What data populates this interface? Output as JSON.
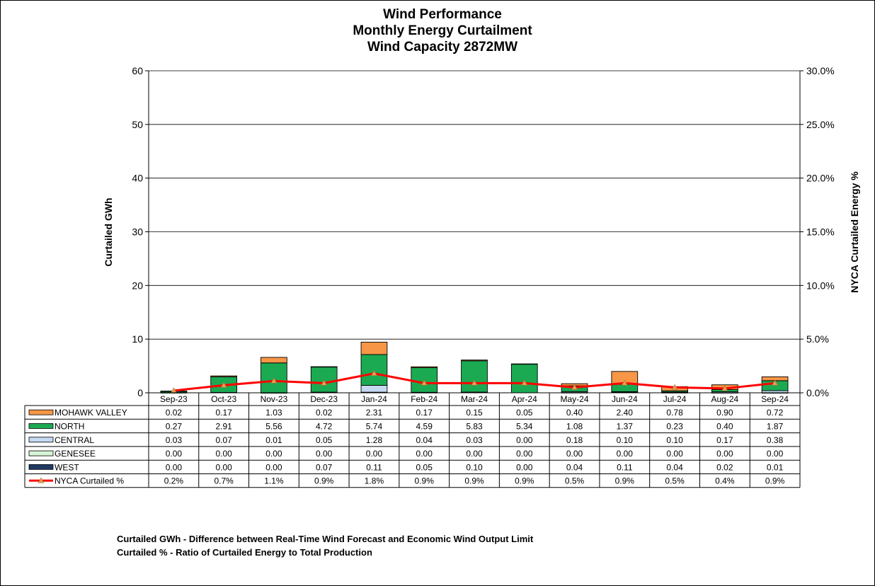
{
  "chart_data": {
    "type": "bar",
    "stacked": true,
    "title_lines": [
      "Wind Performance",
      "Monthly Energy Curtailment",
      "Wind Capacity 2872MW"
    ],
    "ylabel": "Curtailed GWh",
    "y2label": "NYCA  Curtailed Energy %",
    "ylim": [
      0,
      60
    ],
    "y2lim": [
      0,
      30
    ],
    "yticks": [
      "0",
      "10",
      "20",
      "30",
      "40",
      "50",
      "60"
    ],
    "y2ticks": [
      "0.0%",
      "5.0%",
      "10.0%",
      "15.0%",
      "20.0%",
      "25.0%",
      "30.0%"
    ],
    "grid": true,
    "legend": "table-below",
    "categories": [
      "Sep-23",
      "Oct-23",
      "Nov-23",
      "Dec-23",
      "Jan-24",
      "Feb-24",
      "Mar-24",
      "Apr-24",
      "May-24",
      "Jun-24",
      "Jul-24",
      "Aug-24",
      "Sep-24"
    ],
    "series": [
      {
        "name": "MOHAWK VALLEY",
        "color": "#F79646",
        "labels": [
          "0.02",
          "0.17",
          "1.03",
          "0.02",
          "2.31",
          "0.17",
          "0.15",
          "0.05",
          "0.40",
          "2.40",
          "0.78",
          "0.90",
          "0.72"
        ],
        "values": [
          0.02,
          0.17,
          1.03,
          0.02,
          2.31,
          0.17,
          0.15,
          0.05,
          0.4,
          2.4,
          0.78,
          0.9,
          0.72
        ]
      },
      {
        "name": "NORTH",
        "color": "#1BAA52",
        "labels": [
          "0.27",
          "2.91",
          "5.56",
          "4.72",
          "5.74",
          "4.59",
          "5.83",
          "5.34",
          "1.08",
          "1.37",
          "0.23",
          "0.40",
          "1.87"
        ],
        "values": [
          0.27,
          2.91,
          5.56,
          4.72,
          5.74,
          4.59,
          5.83,
          5.34,
          1.08,
          1.37,
          0.23,
          0.4,
          1.87
        ]
      },
      {
        "name": "CENTRAL",
        "color": "#C6D9F1",
        "labels": [
          "0.03",
          "0.07",
          "0.01",
          "0.05",
          "1.28",
          "0.04",
          "0.03",
          "0.00",
          "0.18",
          "0.10",
          "0.10",
          "0.17",
          "0.38"
        ],
        "values": [
          0.03,
          0.07,
          0.01,
          0.05,
          1.28,
          0.04,
          0.03,
          0.0,
          0.18,
          0.1,
          0.1,
          0.17,
          0.38
        ]
      },
      {
        "name": "GENESEE",
        "color": "#D7F4D7",
        "labels": [
          "0.00",
          "0.00",
          "0.00",
          "0.00",
          "0.00",
          "0.00",
          "0.00",
          "0.00",
          "0.00",
          "0.00",
          "0.00",
          "0.00",
          "0.00"
        ],
        "values": [
          0,
          0,
          0,
          0,
          0,
          0,
          0,
          0,
          0,
          0,
          0,
          0,
          0
        ]
      },
      {
        "name": "WEST",
        "color": "#1F3864",
        "labels": [
          "0.00",
          "0.00",
          "0.00",
          "0.07",
          "0.11",
          "0.05",
          "0.10",
          "0.00",
          "0.04",
          "0.11",
          "0.04",
          "0.02",
          "0.01"
        ],
        "values": [
          0.0,
          0.0,
          0.0,
          0.07,
          0.11,
          0.05,
          0.1,
          0.0,
          0.04,
          0.11,
          0.04,
          0.02,
          0.01
        ]
      }
    ],
    "line_series": {
      "name": "NYCA Curtailed %",
      "color": "#FF0000",
      "marker_color": "#E0A050",
      "labels": [
        "0.2%",
        "0.7%",
        "1.1%",
        "0.9%",
        "1.8%",
        "0.9%",
        "0.9%",
        "0.9%",
        "0.5%",
        "0.9%",
        "0.5%",
        "0.4%",
        "0.9%"
      ],
      "values": [
        0.2,
        0.7,
        1.1,
        0.9,
        1.8,
        0.9,
        0.9,
        0.9,
        0.5,
        0.9,
        0.5,
        0.4,
        0.9
      ]
    },
    "notes": [
      "Curtailed GWh - Difference between Real-Time Wind Forecast and Economic Wind Output Limit",
      "Curtailed % - Ratio of Curtailed Energy to Total Production"
    ]
  }
}
